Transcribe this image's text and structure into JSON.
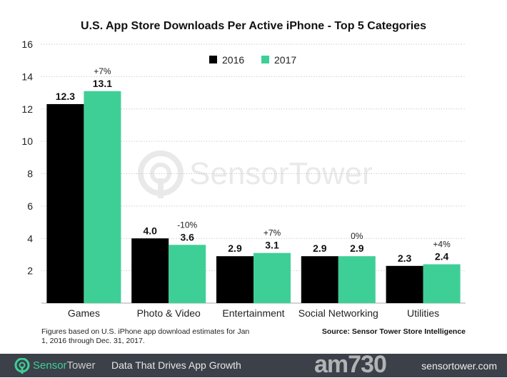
{
  "chart_data": {
    "type": "bar",
    "title": "U.S. App Store Downloads Per Active iPhone - Top 5 Categories",
    "categories": [
      "Games",
      "Photo & Video",
      "Entertainment",
      "Social Networking",
      "Utilities"
    ],
    "series": [
      {
        "name": "2016",
        "color": "#000000",
        "values": [
          12.3,
          4.0,
          2.9,
          2.9,
          2.3
        ],
        "labels": [
          "12.3",
          "4.0",
          "2.9",
          "2.9",
          "2.3"
        ]
      },
      {
        "name": "2017",
        "color": "#3ecf97",
        "values": [
          13.1,
          3.6,
          3.1,
          2.9,
          2.4
        ],
        "labels": [
          "13.1",
          "3.6",
          "3.1",
          "2.9",
          "2.4"
        ]
      }
    ],
    "change_labels": [
      "+7%",
      "-10%",
      "+7%",
      "0%",
      "+4%"
    ],
    "yticks": [
      "2",
      "4",
      "6",
      "8",
      "10",
      "12",
      "14",
      "16"
    ],
    "ylim": [
      0,
      16
    ],
    "xlabel": "",
    "ylabel": "",
    "grid": "horizontal dotted",
    "legend": "top-center"
  },
  "watermark": "SensorTower",
  "note": "Figures based on U.S. iPhone app download estimates for Jan 1, 2016 through Dec. 31, 2017.",
  "source": "Source: Sensor Tower Store Intelligence",
  "footer": {
    "brand_a": "Sensor",
    "brand_b": "Tower",
    "tagline": "Data That Drives App Growth",
    "site": "sensortower.com",
    "corner_watermark": "am730"
  }
}
